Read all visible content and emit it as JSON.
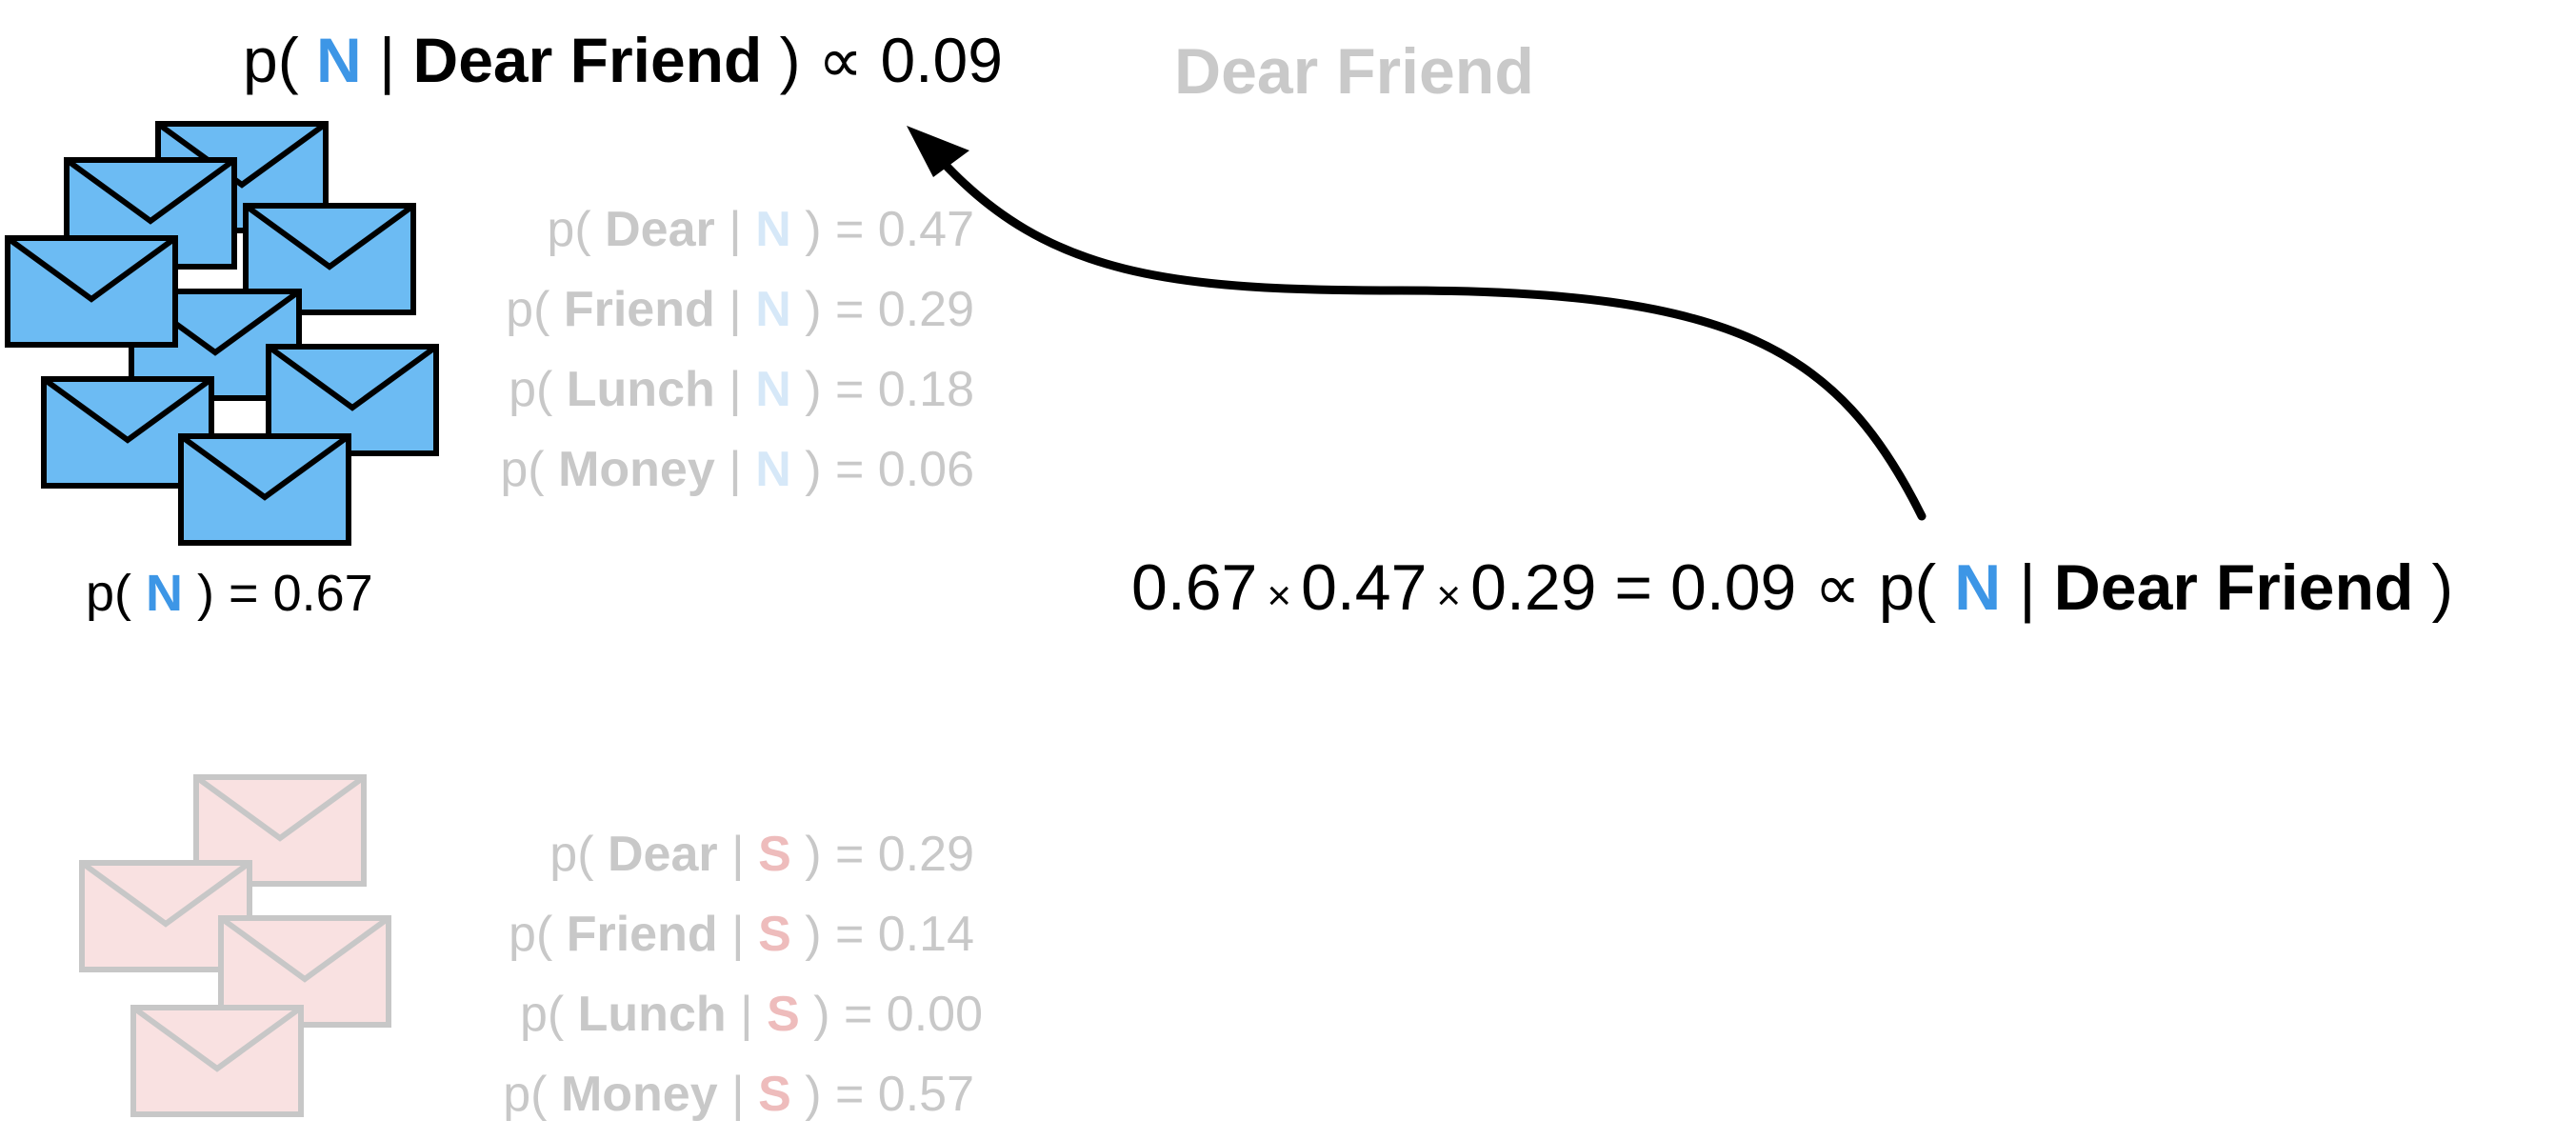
{
  "title": {
    "prefix": "p(",
    "cls": "N",
    "bar": "|",
    "words": "Dear Friend",
    "suffix": ") ∝ 0.09"
  },
  "ghost_message": "Dear Friend",
  "normal": {
    "label": "N",
    "prior": {
      "prefix": "p(",
      "cls": "N",
      "suffix": ") = 0.67"
    },
    "likelihoods": [
      {
        "prefix": "p(",
        "word": "Dear",
        "bar": "|",
        "cls": "N",
        "suffix": ") = 0.47"
      },
      {
        "prefix": "p(",
        "word": "Friend",
        "bar": "|",
        "cls": "N",
        "suffix": ") = 0.29"
      },
      {
        "prefix": "p(",
        "word": "Lunch",
        "bar": "|",
        "cls": "N",
        "suffix": ") = 0.18"
      },
      {
        "prefix": "p(",
        "word": "Money",
        "bar": "|",
        "cls": "N",
        "suffix": ") = 0.06"
      }
    ]
  },
  "spam": {
    "label": "S",
    "likelihoods": [
      {
        "prefix": "p(",
        "word": "Dear",
        "bar": "|",
        "cls": "S",
        "suffix": ") = 0.29"
      },
      {
        "prefix": "p(",
        "word": "Friend",
        "bar": "|",
        "cls": "S",
        "suffix": ") = 0.14"
      },
      {
        "prefix": "p(",
        "word": "Lunch",
        "bar": "|",
        "cls": "S",
        "suffix": ") = 0.00"
      },
      {
        "prefix": "p(",
        "word": "Money",
        "bar": "|",
        "cls": "S",
        "suffix": ") = 0.57"
      }
    ]
  },
  "equation": {
    "a": "0.67",
    "times1": "×",
    "b": "0.47",
    "times2": "×",
    "c": "0.29",
    "result": "= 0.09 ∝ p(",
    "cls": "N",
    "bar": "|",
    "words": "Dear Friend",
    "close": ")"
  },
  "colors": {
    "normal_envelope": "#6cbbf3",
    "normal_accent": "#3d96e6",
    "spam_envelope": "#f9e1e1",
    "spam_stroke": "#c7c7c7",
    "faint_text": "#c8c8c8"
  },
  "icons": [
    "envelope-icon",
    "arrow-icon"
  ]
}
